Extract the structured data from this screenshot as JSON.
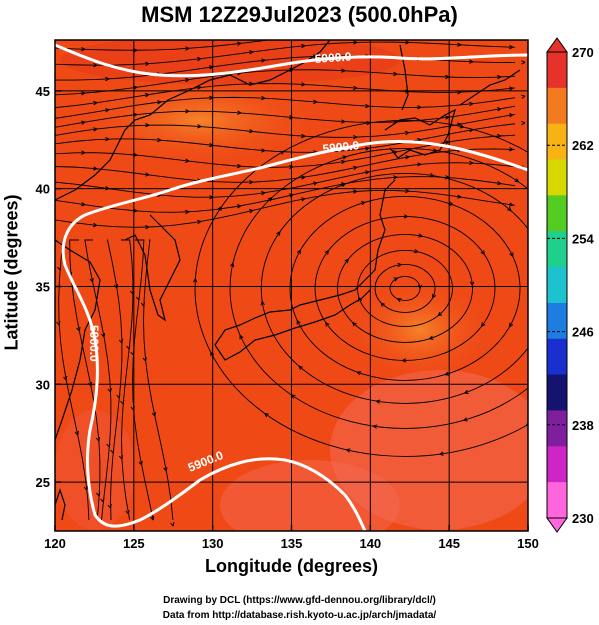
{
  "title": "MSM 12Z29Jul2023 (500.0hPa)",
  "axes": {
    "xlabel": "Longitude (degrees)",
    "ylabel": "Latitude  (degrees)",
    "x_ticks": [
      "120",
      "125",
      "130",
      "135",
      "140",
      "145",
      "150"
    ],
    "y_ticks": [
      "25",
      "30",
      "35",
      "40",
      "45"
    ]
  },
  "colorbar": {
    "labels": [
      "270",
      "262",
      "254",
      "246",
      "238",
      "230"
    ],
    "colors": [
      "#e6322a",
      "#f37a1f",
      "#f7b214",
      "#d7d800",
      "#55cc22",
      "#1fcf8c",
      "#1cc3cf",
      "#1d7de0",
      "#1a2fd0",
      "#141470",
      "#7f1f9e",
      "#d025c6",
      "#ff66dd"
    ]
  },
  "contours": {
    "label": "5900.0",
    "label_upper": "5900.0",
    "label_left": "5900.0",
    "label_lower": "5900.0"
  },
  "credits": {
    "line1": "Drawing by DCL (https://www.gfd-dennou.org/library/dcl/)",
    "line2": "Data from http://database.rish.kyoto-u.ac.jp/arch/jmadata/"
  },
  "chart_data": {
    "type": "heatmap",
    "title": "MSM 12Z29Jul2023 (500.0hPa)",
    "xlabel": "Longitude (degrees)",
    "ylabel": "Latitude  (degrees)",
    "xlim": [
      120,
      150
    ],
    "ylim": [
      22.5,
      47.6
    ],
    "colorbar_range": [
      230,
      270
    ],
    "colorbar_labels": [
      270,
      262,
      254,
      246,
      238,
      230
    ],
    "field_color": "#ef4a16",
    "contour_value": 5900.0,
    "anticyclone_center": {
      "lon": 142.2,
      "lat": 34.9
    }
  }
}
